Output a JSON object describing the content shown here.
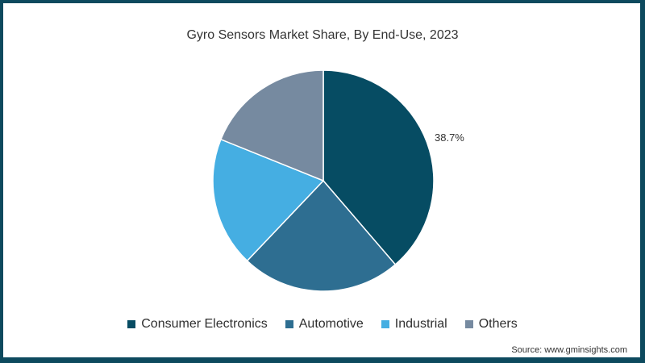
{
  "chart_data": {
    "type": "pie",
    "title": "Gyro Sensors Market Share, By End-Use, 2023",
    "categories": [
      "Consumer Electronics",
      "Automotive",
      "Industrial",
      "Others"
    ],
    "values": [
      38.7,
      23.4,
      19.0,
      18.9
    ],
    "colors": [
      "#064c63",
      "#2e6e91",
      "#45aee2",
      "#768aa0"
    ],
    "data_labels": [
      "38.7%",
      "",
      "",
      ""
    ],
    "legend_position": "bottom",
    "start_angle": "12 o'clock, clockwise"
  },
  "labels": {
    "consumer_electronics_pct": "38.7%"
  },
  "legend": {
    "items": [
      {
        "label": "Consumer Electronics",
        "color": "#064c63"
      },
      {
        "label": "Automotive",
        "color": "#2e6e91"
      },
      {
        "label": "Industrial",
        "color": "#45aee2"
      },
      {
        "label": "Others",
        "color": "#768aa0"
      }
    ]
  },
  "source": "Source: www.gminsights.com",
  "colors": {
    "border": "#0d4a5e",
    "background": "#ffffff"
  }
}
